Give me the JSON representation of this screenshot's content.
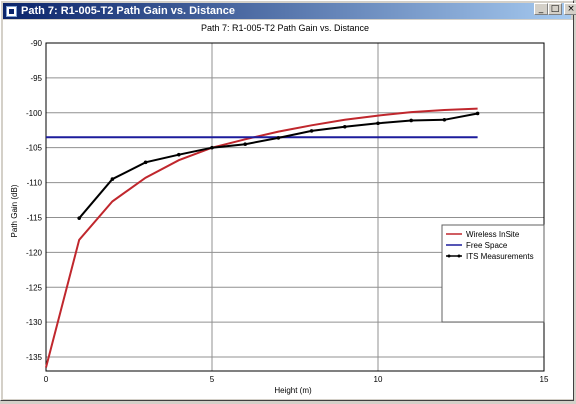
{
  "window": {
    "title": "Path 7: R1-005-T2  Path Gain vs. Distance",
    "controls": {
      "minimize": "_",
      "maximize": "□",
      "close": "×"
    }
  },
  "chart_data": {
    "type": "line",
    "title": "Path 7: R1-005-T2  Path Gain vs. Distance",
    "xlabel": "Height (m)",
    "ylabel": "Path Gain (dB)",
    "xlim": [
      0,
      15
    ],
    "ylim": [
      -137,
      -90
    ],
    "xticks": [
      0,
      5,
      10,
      15
    ],
    "yticks": [
      -90,
      -95,
      -100,
      -105,
      -110,
      -115,
      -120,
      -125,
      -130,
      -135
    ],
    "grid": true,
    "legend_position": "right",
    "series": [
      {
        "name": "Wireless InSite",
        "color": "#c0272d",
        "marker": false,
        "x": [
          0,
          1,
          2,
          3,
          4,
          5,
          6,
          7,
          8,
          9,
          10,
          11,
          12,
          13
        ],
        "y": [
          -136.5,
          -118.2,
          -112.7,
          -109.3,
          -106.8,
          -105.0,
          -103.8,
          -102.7,
          -101.8,
          -101.0,
          -100.4,
          -99.9,
          -99.6,
          -99.4
        ]
      },
      {
        "name": "Free Space",
        "color": "#1c1c9c",
        "marker": false,
        "x": [
          0,
          13
        ],
        "y": [
          -103.5,
          -103.5
        ]
      },
      {
        "name": "ITS Measurements",
        "color": "#000000",
        "marker": true,
        "x": [
          1,
          2,
          3,
          4,
          5,
          6,
          7,
          8,
          9,
          10,
          11,
          12,
          13
        ],
        "y": [
          -115.1,
          -109.5,
          -107.1,
          -106.0,
          -105.0,
          -104.5,
          -103.6,
          -102.6,
          -102.0,
          -101.5,
          -101.1,
          -101.0,
          -100.1
        ]
      }
    ]
  }
}
